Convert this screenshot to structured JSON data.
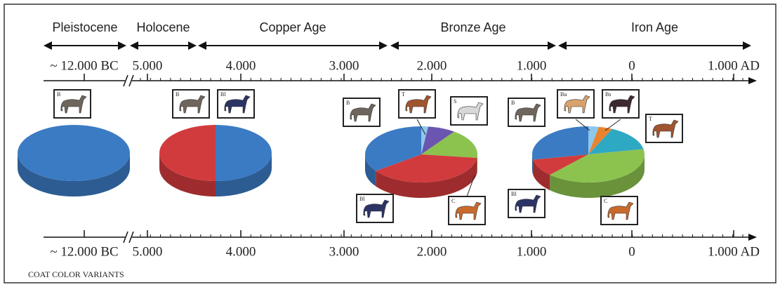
{
  "eras": [
    "Pleistocene",
    "Holocene",
    "Copper Age",
    "Bronze Age",
    "Iron Age"
  ],
  "timeline_labels": [
    "~ 12.000 BC",
    "5.000",
    "4.000",
    "3.000",
    "2.000",
    "1.000",
    "0",
    "1.000 AD"
  ],
  "pies": [
    {
      "slices": [
        {
          "color": "#3b7bc3",
          "value": 100
        }
      ]
    },
    {
      "slices": [
        {
          "color": "#3b7bc3",
          "value": 50
        },
        {
          "color": "#d23b3d",
          "value": 50
        }
      ]
    },
    {
      "slices": [
        {
          "color": "#8cc8ee",
          "value": 2
        },
        {
          "color": "#6b55b0",
          "value": 8
        },
        {
          "color": "#8cc34f",
          "value": 17
        },
        {
          "color": "#d23b3d",
          "value": 38
        },
        {
          "color": "#3b7bc3",
          "value": 35
        }
      ]
    },
    {
      "slices": [
        {
          "color": "#8cc8ee",
          "value": 3
        },
        {
          "color": "#e9832f",
          "value": 4
        },
        {
          "color": "#2ea9c4",
          "value": 15
        },
        {
          "color": "#8cc34f",
          "value": 40
        },
        {
          "color": "#d23b3d",
          "value": 10
        },
        {
          "color": "#3b7bc3",
          "value": 28
        }
      ]
    }
  ],
  "horses": [
    {
      "label": "B",
      "color": "#6e665c"
    },
    {
      "label": "B",
      "color": "#6e665c"
    },
    {
      "label": "Bl",
      "color": "#2c3466"
    },
    {
      "label": "B",
      "color": "#6e665c"
    },
    {
      "label": "T",
      "color": "#a0552e"
    },
    {
      "label": "S",
      "color": "#d8d8d8"
    },
    {
      "label": "Bl",
      "color": "#2c3466"
    },
    {
      "label": "C",
      "color": "#c86a2c"
    },
    {
      "label": "B",
      "color": "#6e665c"
    },
    {
      "label": "Bu",
      "color": "#d9a26c"
    },
    {
      "label": "Bs",
      "color": "#3c2a2e"
    },
    {
      "label": "T",
      "color": "#a0552e"
    },
    {
      "label": "Bl",
      "color": "#2c3466"
    },
    {
      "label": "C",
      "color": "#c86a2c"
    }
  ],
  "caption": "COAT COLOR VARIANTS"
}
